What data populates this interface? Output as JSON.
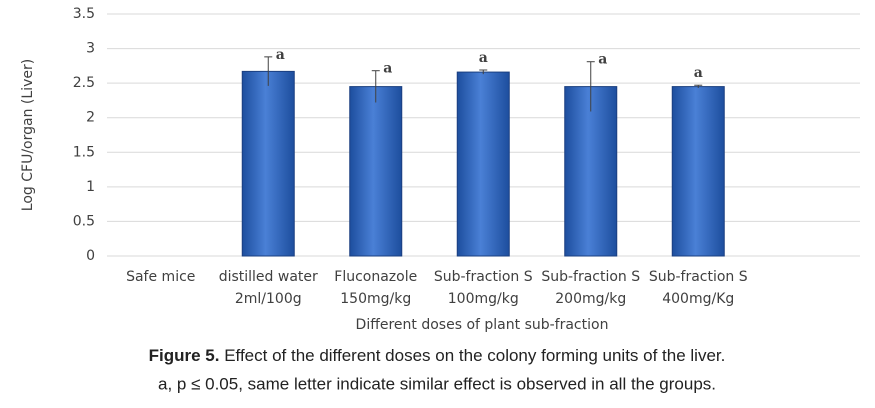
{
  "chart_data": {
    "type": "bar",
    "y_label": "Log CFU/organ (Liver)",
    "x_label": "Different doses of plant sub-fraction",
    "categories": [
      [
        "Safe mice"
      ],
      [
        "distilled water",
        "2ml/100g"
      ],
      [
        "Fluconazole",
        "150mg/kg"
      ],
      [
        "Sub-fraction S",
        "100mg/kg"
      ],
      [
        "Sub-fraction S",
        "200mg/kg"
      ],
      [
        "Sub-fraction S",
        "400mg/Kg"
      ]
    ],
    "values": [
      null,
      2.67,
      2.45,
      2.66,
      2.45,
      2.45
    ],
    "errors": [
      null,
      0.21,
      0.23,
      0.03,
      0.36,
      0.02
    ],
    "annotations": [
      null,
      "a",
      "a",
      "a",
      "a",
      "a"
    ],
    "color": "#2e62b8",
    "ylim": [
      0,
      3.5
    ],
    "yticks": [
      0,
      0.5,
      1,
      1.5,
      2,
      2.5,
      3,
      3.5
    ],
    "grid": true
  },
  "caption": {
    "label": "Figure 5.",
    "text": " Effect of the different doses on the colony forming units of the liver.",
    "line2": "a, p ≤ 0.05, same letter indicate  similar effect is observed in all the groups."
  }
}
